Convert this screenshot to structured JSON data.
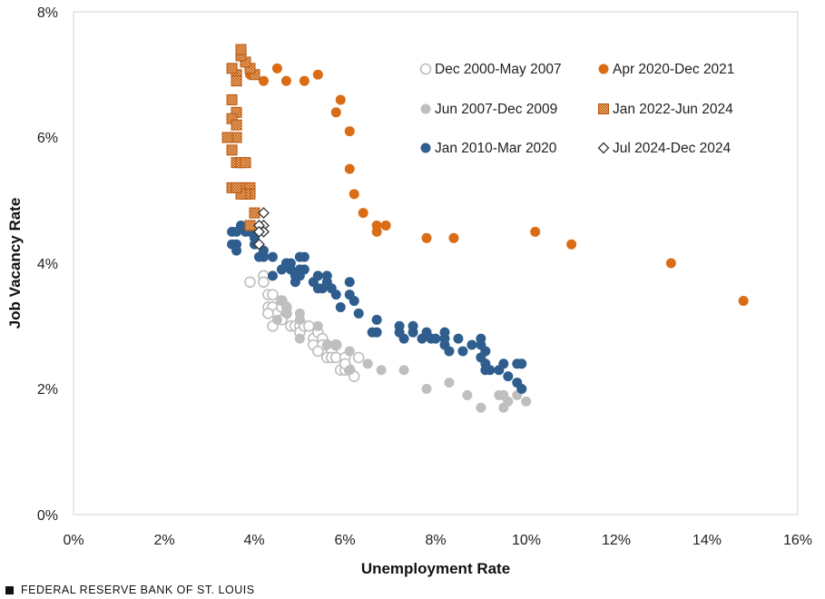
{
  "chart_data": {
    "type": "scatter",
    "title": "",
    "xlabel": "Unemployment Rate",
    "ylabel": "Job Vacancy Rate",
    "xlim": [
      0,
      16
    ],
    "ylim": [
      0,
      8
    ],
    "x_ticks": [
      "0%",
      "2%",
      "4%",
      "6%",
      "8%",
      "10%",
      "12%",
      "14%",
      "16%"
    ],
    "y_ticks": [
      "0%",
      "2%",
      "4%",
      "6%",
      "8%"
    ],
    "grid": false,
    "legend_placement": "top-right",
    "series": [
      {
        "name": "Dec 2000-May 2007",
        "marker": "open-circle",
        "color": "#bdbdbd",
        "points": [
          [
            3.9,
            3.7
          ],
          [
            4.2,
            3.8
          ],
          [
            4.2,
            3.7
          ],
          [
            4.3,
            3.5
          ],
          [
            4.4,
            3.5
          ],
          [
            4.3,
            3.3
          ],
          [
            4.4,
            3.3
          ],
          [
            4.5,
            3.2
          ],
          [
            4.3,
            3.2
          ],
          [
            4.4,
            3.0
          ],
          [
            4.6,
            3.4
          ],
          [
            4.7,
            3.3
          ],
          [
            4.6,
            3.3
          ],
          [
            4.7,
            3.2
          ],
          [
            4.6,
            3.1
          ],
          [
            4.8,
            3.0
          ],
          [
            4.9,
            3.0
          ],
          [
            5.0,
            3.0
          ],
          [
            5.0,
            2.9
          ],
          [
            5.1,
            3.0
          ],
          [
            5.2,
            3.0
          ],
          [
            5.3,
            2.8
          ],
          [
            5.3,
            2.7
          ],
          [
            5.4,
            2.9
          ],
          [
            5.5,
            2.8
          ],
          [
            5.6,
            2.7
          ],
          [
            5.7,
            2.6
          ],
          [
            5.5,
            2.7
          ],
          [
            5.6,
            2.5
          ],
          [
            5.7,
            2.5
          ],
          [
            5.8,
            2.7
          ],
          [
            5.8,
            2.5
          ],
          [
            5.9,
            2.3
          ],
          [
            6.0,
            2.3
          ],
          [
            6.0,
            2.5
          ],
          [
            6.1,
            2.3
          ],
          [
            6.2,
            2.2
          ],
          [
            6.3,
            2.5
          ],
          [
            6.0,
            2.4
          ],
          [
            5.4,
            2.6
          ]
        ]
      },
      {
        "name": "Jun 2007-Dec 2009",
        "marker": "filled-circle",
        "color": "#bfbfbf",
        "points": [
          [
            4.6,
            3.4
          ],
          [
            4.7,
            3.3
          ],
          [
            4.5,
            3.1
          ],
          [
            4.7,
            3.2
          ],
          [
            5.0,
            3.2
          ],
          [
            5.0,
            3.1
          ],
          [
            5.0,
            2.8
          ],
          [
            5.4,
            3.0
          ],
          [
            5.6,
            2.7
          ],
          [
            5.8,
            2.7
          ],
          [
            6.1,
            2.6
          ],
          [
            6.1,
            2.3
          ],
          [
            6.5,
            2.4
          ],
          [
            6.8,
            2.3
          ],
          [
            7.3,
            2.3
          ],
          [
            7.8,
            2.0
          ],
          [
            8.3,
            2.1
          ],
          [
            8.7,
            1.9
          ],
          [
            9.0,
            1.7
          ],
          [
            9.4,
            1.9
          ],
          [
            9.5,
            1.9
          ],
          [
            9.5,
            1.7
          ],
          [
            9.6,
            1.8
          ],
          [
            9.8,
            1.9
          ],
          [
            10.0,
            1.8
          ],
          [
            9.9,
            2.0
          ]
        ]
      },
      {
        "name": "Jan 2010-Mar 2020",
        "marker": "filled-circle",
        "color": "#2e5d8e",
        "points": [
          [
            9.8,
            2.1
          ],
          [
            9.8,
            2.4
          ],
          [
            9.9,
            2.4
          ],
          [
            9.9,
            2.0
          ],
          [
            9.6,
            2.2
          ],
          [
            9.4,
            2.3
          ],
          [
            9.5,
            2.4
          ],
          [
            9.1,
            2.4
          ],
          [
            9.0,
            2.5
          ],
          [
            9.1,
            2.6
          ],
          [
            9.0,
            2.7
          ],
          [
            9.1,
            2.3
          ],
          [
            9.2,
            2.3
          ],
          [
            9.0,
            2.8
          ],
          [
            8.8,
            2.7
          ],
          [
            8.6,
            2.6
          ],
          [
            8.3,
            2.6
          ],
          [
            8.2,
            2.8
          ],
          [
            8.2,
            2.7
          ],
          [
            8.5,
            2.8
          ],
          [
            8.2,
            2.9
          ],
          [
            7.9,
            2.8
          ],
          [
            8.0,
            2.8
          ],
          [
            7.7,
            2.8
          ],
          [
            7.5,
            3.0
          ],
          [
            7.3,
            2.8
          ],
          [
            7.5,
            2.9
          ],
          [
            7.8,
            2.9
          ],
          [
            7.2,
            3.0
          ],
          [
            7.2,
            2.9
          ],
          [
            6.7,
            2.9
          ],
          [
            6.6,
            2.9
          ],
          [
            6.7,
            3.1
          ],
          [
            6.3,
            3.2
          ],
          [
            6.2,
            3.4
          ],
          [
            6.1,
            3.5
          ],
          [
            6.1,
            3.7
          ],
          [
            5.9,
            3.3
          ],
          [
            5.8,
            3.5
          ],
          [
            5.7,
            3.6
          ],
          [
            5.6,
            3.7
          ],
          [
            5.5,
            3.6
          ],
          [
            5.4,
            3.6
          ],
          [
            5.3,
            3.7
          ],
          [
            5.6,
            3.8
          ],
          [
            5.4,
            3.8
          ],
          [
            5.1,
            4.1
          ],
          [
            5.0,
            3.9
          ],
          [
            5.0,
            4.1
          ],
          [
            5.0,
            3.8
          ],
          [
            5.1,
            3.9
          ],
          [
            4.9,
            3.8
          ],
          [
            4.9,
            3.7
          ],
          [
            4.8,
            3.9
          ],
          [
            4.7,
            4.0
          ],
          [
            4.8,
            4.0
          ],
          [
            4.6,
            3.9
          ],
          [
            4.4,
            3.8
          ],
          [
            4.4,
            4.1
          ],
          [
            4.2,
            4.1
          ],
          [
            4.2,
            4.2
          ],
          [
            4.1,
            4.1
          ],
          [
            4.0,
            4.3
          ],
          [
            3.9,
            4.5
          ],
          [
            3.8,
            4.5
          ],
          [
            3.7,
            4.6
          ],
          [
            3.6,
            4.5
          ],
          [
            3.6,
            4.2
          ],
          [
            3.5,
            4.5
          ],
          [
            3.5,
            4.3
          ],
          [
            3.6,
            4.3
          ],
          [
            4.0,
            4.4
          ]
        ]
      },
      {
        "name": "Apr 2020-Dec 2021",
        "marker": "filled-circle",
        "color": "#d96c14",
        "points": [
          [
            14.8,
            3.4
          ],
          [
            13.2,
            4.0
          ],
          [
            11.0,
            4.3
          ],
          [
            10.2,
            4.5
          ],
          [
            8.4,
            4.4
          ],
          [
            7.8,
            4.4
          ],
          [
            6.9,
            4.6
          ],
          [
            6.7,
            4.5
          ],
          [
            6.7,
            4.6
          ],
          [
            6.4,
            4.8
          ],
          [
            6.2,
            5.1
          ],
          [
            6.1,
            5.5
          ],
          [
            6.1,
            6.1
          ],
          [
            5.9,
            6.6
          ],
          [
            5.8,
            6.4
          ],
          [
            5.4,
            7.0
          ],
          [
            5.1,
            6.9
          ],
          [
            4.7,
            6.9
          ],
          [
            4.5,
            7.1
          ],
          [
            4.2,
            6.9
          ],
          [
            3.9,
            7.0
          ]
        ]
      },
      {
        "name": "Jan 2022-Jun 2024",
        "marker": "checkered-square",
        "color": "#e8892e",
        "points": [
          [
            4.0,
            7.0
          ],
          [
            3.9,
            7.1
          ],
          [
            3.8,
            7.2
          ],
          [
            3.7,
            7.3
          ],
          [
            3.7,
            7.4
          ],
          [
            3.6,
            7.0
          ],
          [
            3.6,
            6.9
          ],
          [
            3.5,
            7.1
          ],
          [
            3.6,
            6.4
          ],
          [
            3.5,
            6.6
          ],
          [
            3.5,
            6.3
          ],
          [
            3.6,
            6.2
          ],
          [
            3.6,
            6.0
          ],
          [
            3.4,
            6.0
          ],
          [
            3.5,
            5.8
          ],
          [
            3.6,
            5.6
          ],
          [
            3.7,
            5.6
          ],
          [
            3.8,
            5.6
          ],
          [
            3.5,
            5.2
          ],
          [
            3.7,
            5.2
          ],
          [
            3.8,
            5.2
          ],
          [
            3.9,
            5.2
          ],
          [
            3.9,
            5.1
          ],
          [
            3.8,
            5.1
          ],
          [
            3.7,
            5.1
          ],
          [
            3.6,
            5.2
          ],
          [
            4.0,
            4.8
          ],
          [
            3.9,
            4.6
          ]
        ]
      },
      {
        "name": "Jul 2024-Dec 2024",
        "marker": "open-diamond",
        "color": "#333333",
        "points": [
          [
            4.2,
            4.8
          ],
          [
            4.2,
            4.6
          ],
          [
            4.1,
            4.6
          ],
          [
            4.2,
            4.5
          ],
          [
            4.1,
            4.5
          ],
          [
            4.1,
            4.3
          ]
        ]
      }
    ]
  },
  "footer": {
    "source": "FEDERAL RESERVE BANK OF ST. LOUIS"
  }
}
